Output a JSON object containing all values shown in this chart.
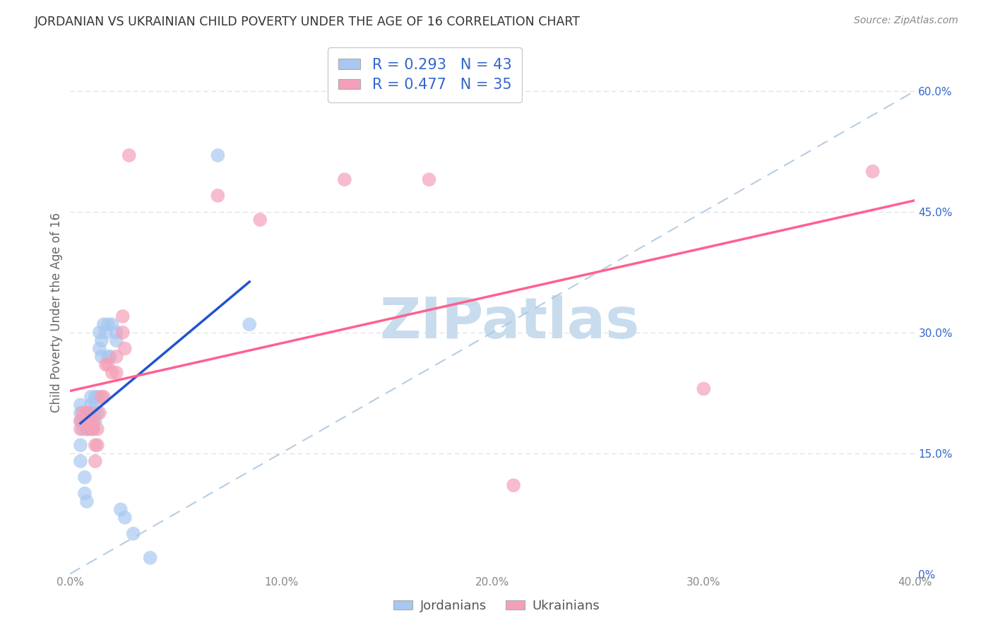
{
  "title": "JORDANIAN VS UKRAINIAN CHILD POVERTY UNDER THE AGE OF 16 CORRELATION CHART",
  "source": "Source: ZipAtlas.com",
  "ylabel": "Child Poverty Under the Age of 16",
  "jordanians_color": "#A8C8F0",
  "ukrainians_color": "#F4A0B8",
  "jordanians_line_color": "#2255CC",
  "ukrainians_line_color": "#FF6090",
  "diag_color": "#B0C8E0",
  "jordanians_label": "Jordanians",
  "ukrainians_label": "Ukrainians",
  "R_jordan": 0.293,
  "N_jordan": 43,
  "R_ukraine": 0.477,
  "N_ukraine": 35,
  "legend_text_color": "#3366CC",
  "watermark_text": "ZIPatlas",
  "watermark_color": "#C8DCEE",
  "xlim": [
    0.0,
    0.4
  ],
  "ylim": [
    0.0,
    0.65
  ],
  "xtick_vals": [
    0.0,
    0.1,
    0.2,
    0.3,
    0.4
  ],
  "xtick_labels": [
    "0.0%",
    "10.0%",
    "20.0%",
    "30.0%",
    "40.0%"
  ],
  "ytick_vals": [
    0.0,
    0.15,
    0.3,
    0.45,
    0.6
  ],
  "ytick_labels": [
    "0%",
    "15.0%",
    "30.0%",
    "45.0%",
    "60.0%"
  ],
  "background_color": "#FFFFFF",
  "grid_color": "#DDDDDD",
  "jordanians_x": [
    0.005,
    0.005,
    0.005,
    0.005,
    0.005,
    0.006,
    0.006,
    0.007,
    0.007,
    0.008,
    0.008,
    0.008,
    0.009,
    0.009,
    0.009,
    0.01,
    0.01,
    0.01,
    0.011,
    0.011,
    0.012,
    0.012,
    0.012,
    0.013,
    0.013,
    0.014,
    0.014,
    0.015,
    0.015,
    0.016,
    0.017,
    0.018,
    0.018,
    0.019,
    0.02,
    0.022,
    0.022,
    0.024,
    0.026,
    0.03,
    0.038,
    0.07,
    0.085
  ],
  "jordanians_y": [
    0.19,
    0.2,
    0.21,
    0.16,
    0.14,
    0.18,
    0.19,
    0.12,
    0.1,
    0.19,
    0.18,
    0.09,
    0.18,
    0.19,
    0.2,
    0.22,
    0.21,
    0.19,
    0.18,
    0.2,
    0.21,
    0.19,
    0.22,
    0.2,
    0.22,
    0.28,
    0.3,
    0.27,
    0.29,
    0.31,
    0.3,
    0.31,
    0.27,
    0.27,
    0.31,
    0.29,
    0.3,
    0.08,
    0.07,
    0.05,
    0.02,
    0.52,
    0.31
  ],
  "ukrainians_x": [
    0.005,
    0.005,
    0.006,
    0.007,
    0.008,
    0.008,
    0.009,
    0.009,
    0.01,
    0.01,
    0.011,
    0.011,
    0.012,
    0.012,
    0.013,
    0.013,
    0.014,
    0.015,
    0.016,
    0.017,
    0.018,
    0.02,
    0.022,
    0.022,
    0.025,
    0.025,
    0.026,
    0.028,
    0.07,
    0.09,
    0.13,
    0.17,
    0.21,
    0.3,
    0.38
  ],
  "ukrainians_y": [
    0.19,
    0.18,
    0.2,
    0.19,
    0.18,
    0.2,
    0.19,
    0.2,
    0.18,
    0.19,
    0.18,
    0.19,
    0.16,
    0.14,
    0.16,
    0.18,
    0.2,
    0.22,
    0.22,
    0.26,
    0.26,
    0.25,
    0.25,
    0.27,
    0.3,
    0.32,
    0.28,
    0.52,
    0.47,
    0.44,
    0.49,
    0.49,
    0.11,
    0.23,
    0.5
  ]
}
